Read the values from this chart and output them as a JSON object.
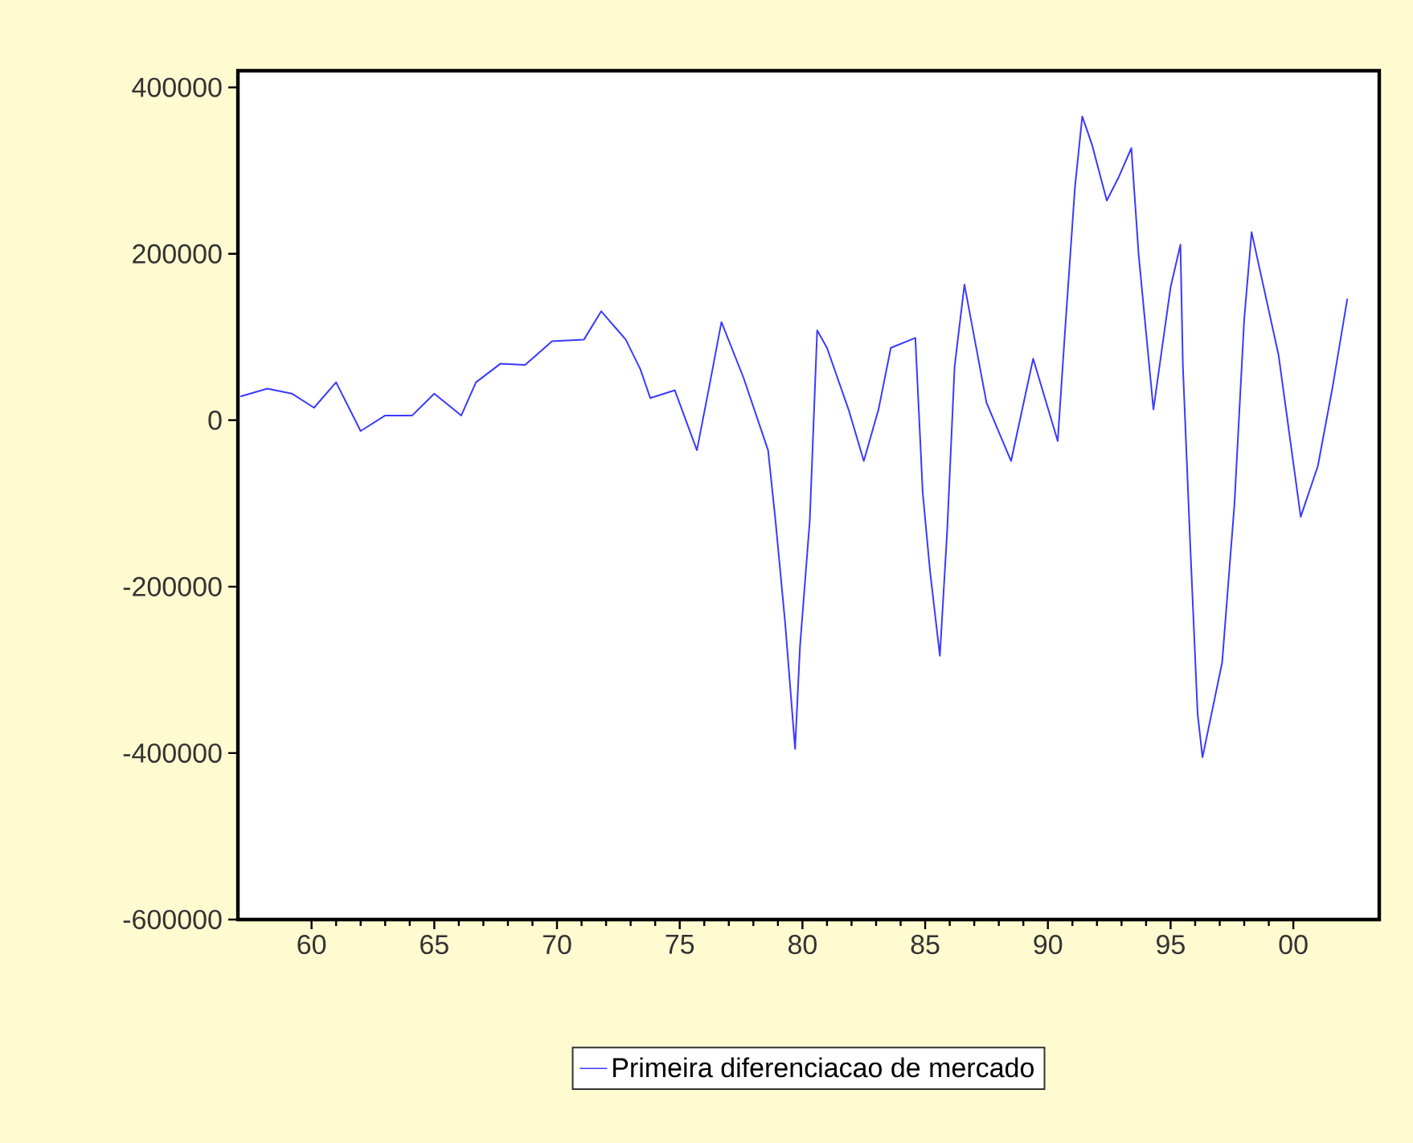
{
  "chart_data": {
    "type": "line",
    "x": [
      1957.1,
      1958.2,
      1959.2,
      1960.1,
      1961.0,
      1962.0,
      1963.0,
      1964.1,
      1965.0,
      1966.1,
      1966.7,
      1967.7,
      1968.7,
      1969.8,
      1971.1,
      1971.8,
      1972.8,
      1973.4,
      1973.8,
      1974.8,
      1975.7,
      1976.2,
      1976.7,
      1977.6,
      1978.6,
      1978.9,
      1979.3,
      1979.7,
      1979.9,
      1980.3,
      1980.6,
      1981.0,
      1981.9,
      1982.5,
      1983.1,
      1983.6,
      1984.6,
      1984.9,
      1985.2,
      1985.6,
      1985.9,
      1986.2,
      1986.6,
      1987.5,
      1988.5,
      1989.4,
      1990.4,
      1990.7,
      1991.1,
      1991.4,
      1991.8,
      1992.4,
      1992.9,
      1993.4,
      1993.7,
      1994.3,
      1995.0,
      1995.4,
      1995.5,
      1995.8,
      1996.1,
      1996.3,
      1997.1,
      1997.6,
      1998.0,
      1998.3,
      1999.4,
      2000.3,
      2001.0,
      2001.6,
      2002.2
    ],
    "series": [
      {
        "name": "Primeira diferenciacao de mercado",
        "color": "#3a3aff",
        "values": [
          28500,
          38000,
          32000,
          15000,
          45600,
          -13000,
          5700,
          5700,
          32000,
          5700,
          45600,
          68000,
          66500,
          95000,
          97000,
          131000,
          97000,
          61000,
          26600,
          36000,
          -36000,
          40000,
          118000,
          51000,
          -36000,
          -120000,
          -245000,
          -395000,
          -272000,
          -120000,
          108000,
          87000,
          11000,
          -49000,
          13000,
          87000,
          99000,
          -87000,
          -182000,
          -283000,
          -131000,
          65000,
          163000,
          21000,
          -49000,
          74000,
          -25000,
          108000,
          279000,
          365000,
          331000,
          264000,
          293000,
          327000,
          198000,
          13000,
          160000,
          211000,
          65000,
          -150000,
          -353000,
          -405000,
          -291000,
          -101000,
          122000,
          226000,
          78000,
          -116000,
          -55000,
          40000,
          146000
        ]
      }
    ],
    "xlim": [
      1957,
      2003.5
    ],
    "xticks": [
      {
        "value": 1960,
        "label": "60"
      },
      {
        "value": 1965,
        "label": "65"
      },
      {
        "value": 1970,
        "label": "70"
      },
      {
        "value": 1975,
        "label": "75"
      },
      {
        "value": 1980,
        "label": "80"
      },
      {
        "value": 1985,
        "label": "85"
      },
      {
        "value": 1990,
        "label": "90"
      },
      {
        "value": 1995,
        "label": "95"
      },
      {
        "value": 2000,
        "label": "00"
      }
    ],
    "ylim": [
      -600000,
      420000
    ],
    "yticks": [
      -600000,
      -400000,
      -200000,
      0,
      200000,
      400000
    ],
    "legend": "bottom",
    "grid": false,
    "marker": "none",
    "line_style": "solid"
  }
}
